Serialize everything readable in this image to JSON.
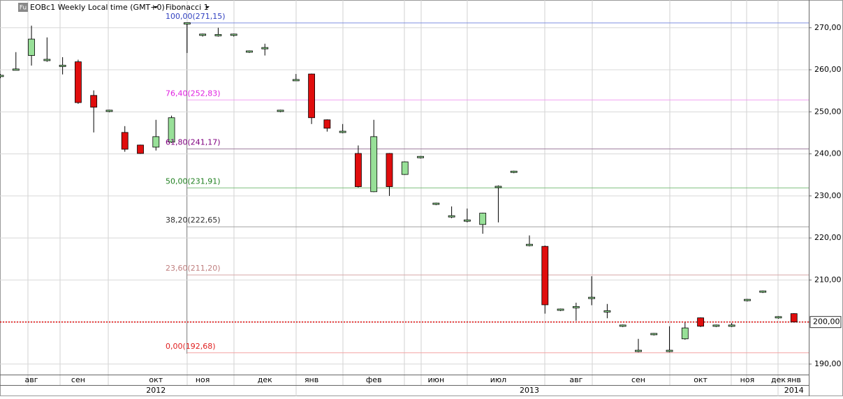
{
  "chart_data": {
    "type": "candlestick",
    "title": "EOBc1 Weekly Local time (GMT+0)",
    "indicator": "Fibonacci 1",
    "symbol_icon": "Fu",
    "categories": [
      null,
      null,
      "авг",
      null,
      null,
      "сен",
      null,
      null,
      null,
      null,
      "окт",
      null,
      null,
      "ноя",
      null,
      null,
      null,
      "дек",
      null,
      null,
      "янв",
      null,
      null,
      null,
      "фев",
      null,
      null,
      null,
      "июн",
      null,
      null,
      null,
      "июл",
      null,
      null,
      null,
      null,
      "авг",
      null,
      null,
      null,
      "сен",
      null,
      null,
      null,
      "окт",
      null,
      null,
      "ноя",
      null,
      "дек",
      "янв",
      null
    ],
    "years": [
      null,
      null,
      null,
      null,
      null,
      null,
      null,
      null,
      null,
      null,
      "2012",
      null,
      null,
      null,
      null,
      null,
      null,
      null,
      null,
      null,
      null,
      null,
      null,
      null,
      null,
      null,
      null,
      null,
      null,
      null,
      null,
      null,
      null,
      null,
      "2013",
      null,
      null,
      null,
      null,
      null,
      null,
      null,
      null,
      null,
      null,
      null,
      null,
      null,
      null,
      null,
      null,
      "2014"
    ],
    "open": [
      258.5,
      260,
      263.4,
      262.3,
      260.9,
      261.9,
      253.9,
      250.2,
      245.1,
      242.1,
      241.6,
      242.8,
      271,
      268.3,
      268.2,
      268.3,
      264.3,
      265.1,
      250.2,
      257.5,
      259,
      248.1,
      245.2,
      240.1,
      231,
      240.1,
      235.1,
      239.2,
      228.1,
      225.1,
      224.1,
      223.2,
      232.1,
      235.7,
      218.3,
      218,
      202.9,
      203.5,
      205.7,
      202.5,
      199.1,
      193.1,
      197.1,
      193.1,
      196,
      201,
      199.1,
      199.1,
      205.2,
      207.2,
      201.1,
      202
    ],
    "high": [
      259,
      264.2,
      270.5,
      267.7,
      263,
      262.4,
      255.1,
      250.5,
      246.6,
      242.2,
      248.1,
      249.1,
      271.2,
      268.6,
      270,
      268.6,
      264.6,
      266.2,
      250.5,
      259,
      259.1,
      248.2,
      247.1,
      242,
      248.1,
      240.2,
      238.2,
      239.5,
      228.4,
      227.5,
      227,
      226,
      232.5,
      236,
      220.6,
      218.2,
      203.2,
      204.6,
      210.9,
      204.3,
      199.4,
      196,
      197.4,
      199,
      199.9,
      201.1,
      199.4,
      199.8,
      205.5,
      207.5,
      201.4,
      202.1
    ],
    "low": [
      258,
      260,
      261,
      261.9,
      258.9,
      251.9,
      245.1,
      249.9,
      240.5,
      240,
      240.8,
      242.6,
      264,
      267.9,
      267.9,
      267.9,
      264,
      263.4,
      249.9,
      257.4,
      247.1,
      245.3,
      244.9,
      232,
      230.9,
      230,
      235,
      238.9,
      227.8,
      224.7,
      223.7,
      221,
      223.7,
      235.4,
      218,
      202,
      202.6,
      200.3,
      204,
      200.9,
      198.8,
      192.8,
      196.8,
      192.8,
      195.8,
      198.8,
      198.8,
      198.8,
      204.9,
      206.9,
      200.8,
      199.9
    ],
    "close": [
      258.7,
      260.2,
      267.3,
      262.5,
      261.1,
      252.2,
      251.1,
      250.4,
      241.1,
      240.1,
      244.1,
      248.6,
      271.2,
      268.5,
      268.4,
      268.5,
      264.5,
      265.3,
      250.4,
      257.7,
      248.6,
      246.1,
      245.4,
      232.2,
      244.1,
      232.2,
      238.1,
      239.4,
      228.3,
      225.3,
      224.3,
      225.9,
      232.3,
      235.9,
      218.5,
      204.1,
      203.1,
      203.7,
      205.9,
      202.7,
      199.3,
      193.3,
      197.3,
      193.3,
      198.6,
      199,
      199.3,
      199.3,
      205.4,
      207.4,
      201.3,
      200
    ],
    "up_color": "#98e098",
    "down_color": "#e00d0d",
    "ylim": [
      187.5,
      276.6
    ],
    "yticks": [
      {
        "value": 190,
        "label": "190,00"
      },
      {
        "value": 200,
        "label": "200,00"
      },
      {
        "value": 210,
        "label": "210,00"
      },
      {
        "value": 220,
        "label": "220,00"
      },
      {
        "value": 230,
        "label": "230,00"
      },
      {
        "value": 240,
        "label": "240,00"
      },
      {
        "value": 250,
        "label": "250,00"
      },
      {
        "value": 260,
        "label": "260,00"
      },
      {
        "value": 270,
        "label": "270,00"
      }
    ],
    "grid": true,
    "fibonacci": [
      {
        "label": "100,00(271,15)",
        "value": 271.15,
        "color": "#3040c0",
        "line_color": "#7f8fe0"
      },
      {
        "label": "76,40(252,83)",
        "value": 252.83,
        "color": "#e020e0",
        "line_color": "#f2a0f2"
      },
      {
        "label": "61,80(241,17)",
        "value": 241.17,
        "color": "#800080",
        "line_color": "#a080a0"
      },
      {
        "label": "50,00(231,91)",
        "value": 231.91,
        "color": "#208020",
        "line_color": "#80c080"
      },
      {
        "label": "38,20(222,65)",
        "value": 222.65,
        "color": "#303030",
        "line_color": "#a0a0a0"
      },
      {
        "label": "23,60(211,20)",
        "value": 211.2,
        "color": "#c08080",
        "line_color": "#d8a8a8"
      },
      {
        "label": "0,00(192,68)",
        "value": 192.68,
        "color": "#e02020",
        "line_color": "#f4a4a4"
      }
    ],
    "last_price": {
      "value": 200,
      "label": "200,00",
      "color": "#e00000"
    }
  }
}
